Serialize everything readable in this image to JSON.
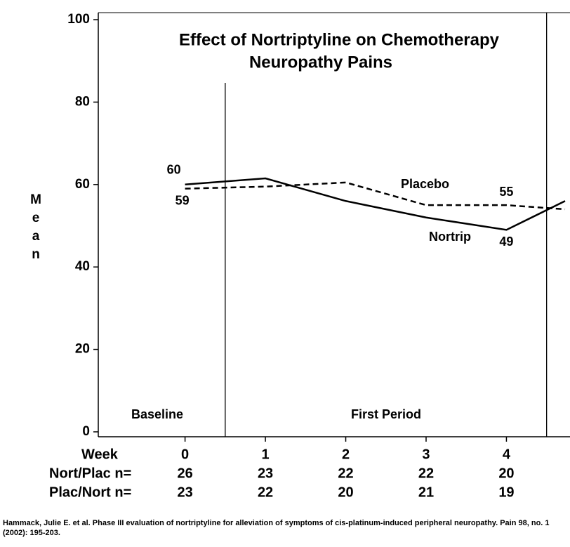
{
  "chart_data": {
    "type": "line",
    "title": "Effect of Nortriptyline on Chemotherapy",
    "subtitle": "Neuropathy Pains",
    "ylabel": "Mean",
    "xlabel": "Week",
    "x": [
      0,
      1,
      2,
      3,
      4,
      4.73
    ],
    "xlim": [
      -1.08,
      4.73
    ],
    "xticks": [
      0,
      1,
      2,
      3,
      4
    ],
    "ylim": [
      0,
      100
    ],
    "yticks": [
      0,
      20,
      40,
      60,
      80,
      100
    ],
    "series": [
      {
        "name": "Nortrip",
        "color": "#000000",
        "dash": false,
        "values": [
          60,
          61.5,
          56,
          52,
          49,
          56
        ],
        "value_labels": [
          "60",
          null,
          null,
          null,
          "49",
          null
        ]
      },
      {
        "name": "Placebo",
        "color": "#000000",
        "dash": true,
        "values": [
          59,
          59.5,
          60.5,
          55,
          55,
          54
        ],
        "value_labels": [
          "59",
          null,
          null,
          null,
          "55",
          null
        ]
      }
    ],
    "dividers": [
      0.5,
      4.5
    ],
    "periods": [
      "Baseline",
      "First Period"
    ],
    "n_table": [
      {
        "label": "Nort/Plac n=",
        "values": [
          26,
          23,
          22,
          22,
          20
        ]
      },
      {
        "label": "Plac/Nort n=",
        "values": [
          23,
          22,
          20,
          21,
          19
        ]
      }
    ],
    "source": "Hammack, Julie E. et al. Phase III evaluation of nortriptyline for alleviation of symptoms of cis-platinum-induced peripheral neuropathy. Pain 98, no. 1 (2002): 195-203."
  }
}
